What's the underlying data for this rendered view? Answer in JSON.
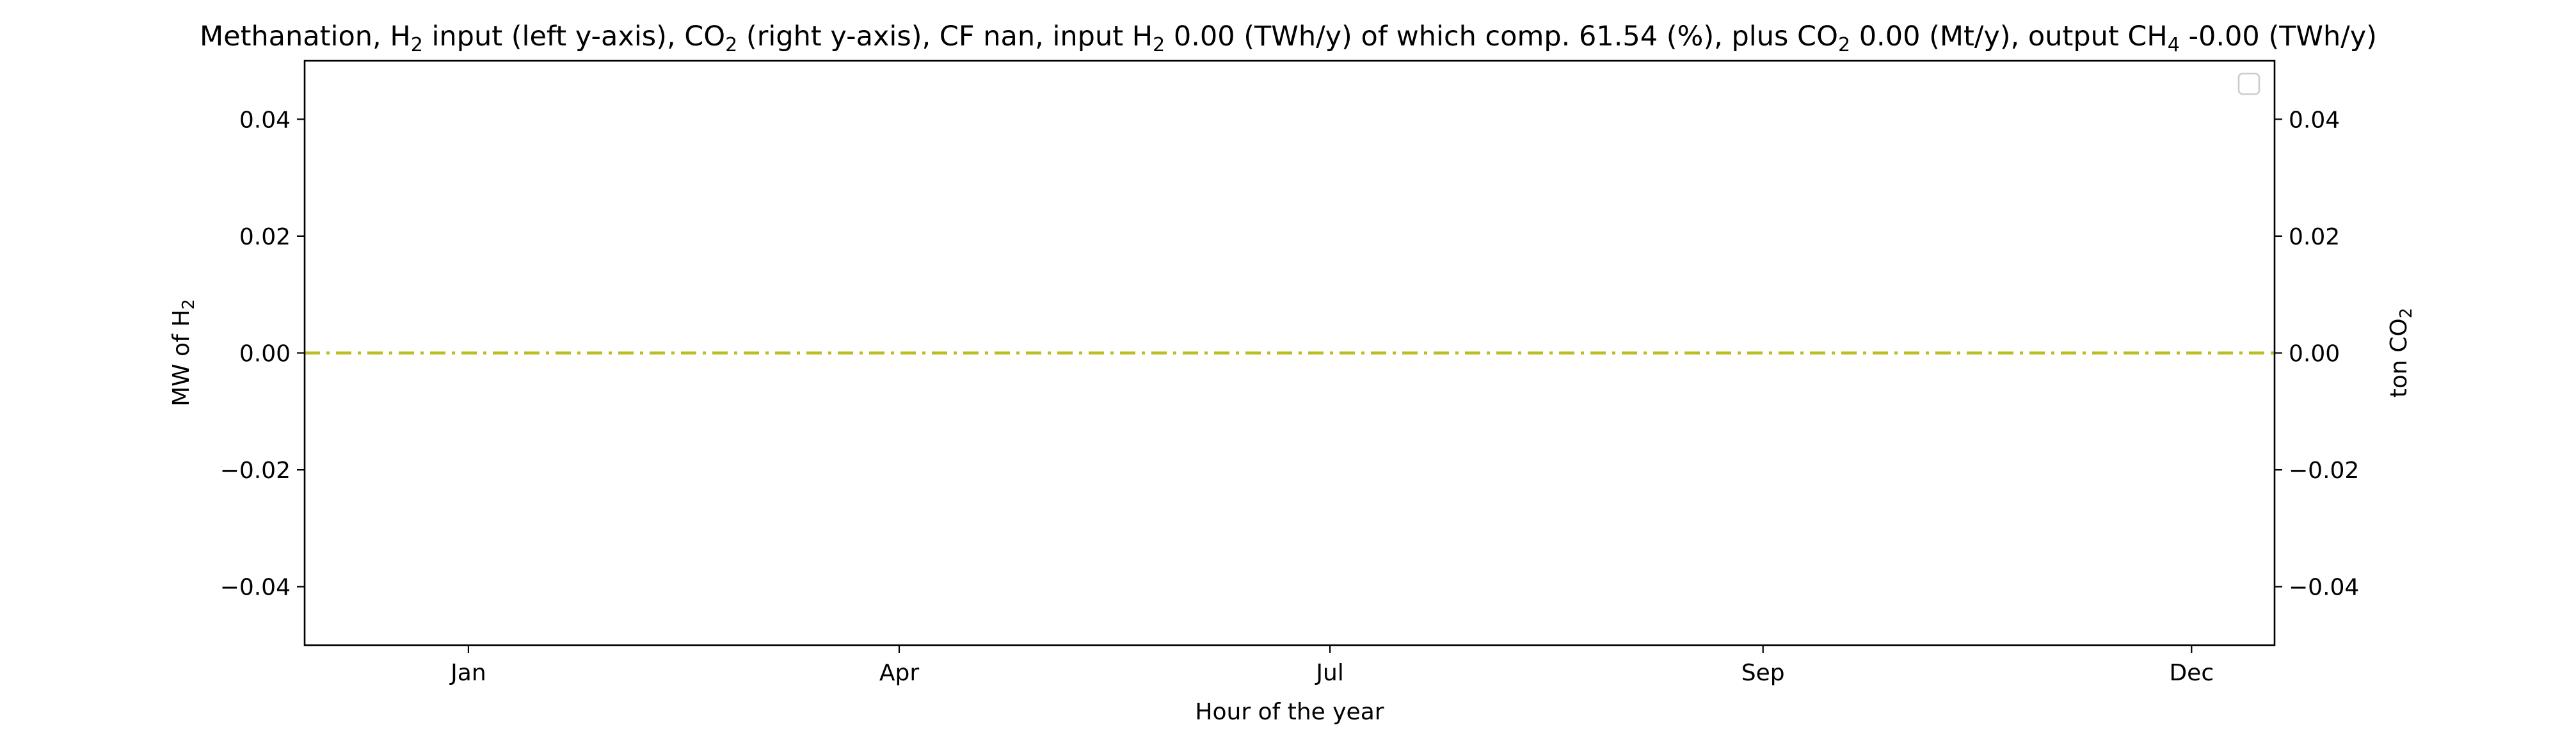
{
  "chart_data": {
    "type": "line",
    "title": {
      "parts": [
        {
          "t": "Methanation, H"
        },
        {
          "t": "2",
          "sub": true
        },
        {
          "t": " input (left y-axis), CO"
        },
        {
          "t": "2",
          "sub": true
        },
        {
          "t": " (right y-axis), CF nan, input H"
        },
        {
          "t": "2",
          "sub": true
        },
        {
          "t": " 0.00 (TWh/y) of which comp. 61.54 (%), plus CO"
        },
        {
          "t": "2",
          "sub": true
        },
        {
          "t": " 0.00 (Mt/y), output CH"
        },
        {
          "t": "4",
          "sub": true
        },
        {
          "t": " -0.00 (TWh/y)"
        }
      ]
    },
    "xlabel": "Hour of the year",
    "ylabel_left": {
      "parts": [
        {
          "t": "MW of H"
        },
        {
          "t": "2",
          "sub": true
        }
      ]
    },
    "ylabel_right": {
      "parts": [
        {
          "t": "ton CO"
        },
        {
          "t": "2",
          "sub": true
        }
      ]
    },
    "xlim": [
      -340,
      8440
    ],
    "x_ticks": [
      {
        "value": 390,
        "label": "Jan"
      },
      {
        "value": 2310,
        "label": "Apr"
      },
      {
        "value": 4230,
        "label": "Jul"
      },
      {
        "value": 6160,
        "label": "Sep"
      },
      {
        "value": 8070,
        "label": "Dec"
      }
    ],
    "ylim_left": [
      -0.05,
      0.05
    ],
    "ylim_right": [
      -0.05,
      0.05
    ],
    "y_ticks_left": [
      {
        "value": 0.04,
        "label": "0.04"
      },
      {
        "value": 0.02,
        "label": "0.02"
      },
      {
        "value": 0.0,
        "label": "0.00"
      },
      {
        "value": -0.02,
        "label": "−0.02"
      },
      {
        "value": -0.04,
        "label": "−0.04"
      }
    ],
    "y_ticks_right": [
      {
        "value": 0.04,
        "label": "0.04"
      },
      {
        "value": 0.02,
        "label": "0.02"
      },
      {
        "value": 0.0,
        "label": "0.00"
      },
      {
        "value": -0.02,
        "label": "−0.02"
      },
      {
        "value": -0.04,
        "label": "−0.04"
      }
    ],
    "series": [
      {
        "axis": "left",
        "style": "dash-dot",
        "color": "#bcbd22",
        "x": [
          -340,
          8440
        ],
        "values": [
          0,
          0
        ]
      }
    ],
    "legend": {
      "placement": "top-right",
      "entries": []
    },
    "grid": false
  }
}
